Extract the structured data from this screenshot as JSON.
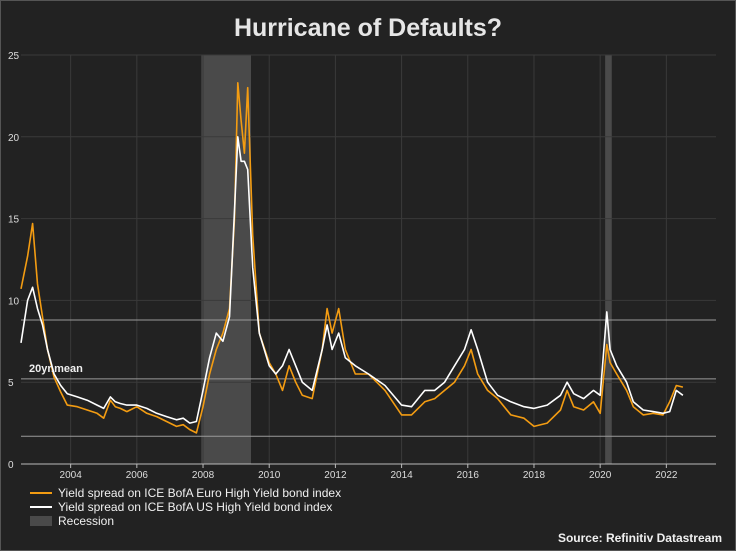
{
  "title": "Hurricane of Defaults?",
  "source": "Source: Refinitiv Datastream",
  "colors": {
    "background": "#222222",
    "euro": "#f39c12",
    "us": "#ffffff",
    "recession": "#4a4a4a",
    "grid": "#3a3a3a"
  },
  "legend": {
    "euro": "Yield spread on ICE BofA Euro High Yield bond index",
    "us": "Yield spread on ICE BofA US High Yield bond index",
    "recession": "Recession"
  },
  "chart_data": {
    "type": "line",
    "ylim": [
      0,
      25
    ],
    "xlim": [
      2002.5,
      2023.5
    ],
    "yticks": [
      0,
      5,
      10,
      15,
      20,
      25
    ],
    "xticks": [
      2004,
      2006,
      2008,
      2010,
      2012,
      2014,
      2016,
      2018,
      2020,
      2022
    ],
    "grid": true,
    "legend_position": "bottom-left",
    "annotations": [
      {
        "text": "20yr.mean",
        "y": 5.2
      }
    ],
    "reference_lines": [
      8.8,
      5.2,
      1.7
    ],
    "recessions": [
      [
        2007.95,
        2009.45
      ],
      [
        2020.15,
        2020.35
      ]
    ],
    "series": [
      {
        "name": "Yield spread on ICE BofA Euro High Yield bond index",
        "color": "#f39c12",
        "x": [
          2002.5,
          2002.7,
          2002.85,
          2003.0,
          2003.15,
          2003.3,
          2003.5,
          2003.7,
          2003.9,
          2004.2,
          2004.5,
          2004.8,
          2005.0,
          2005.2,
          2005.35,
          2005.5,
          2005.7,
          2006.0,
          2006.3,
          2006.6,
          2006.9,
          2007.2,
          2007.4,
          2007.6,
          2007.8,
          2008.0,
          2008.2,
          2008.4,
          2008.6,
          2008.8,
          2008.95,
          2009.05,
          2009.15,
          2009.25,
          2009.35,
          2009.5,
          2009.7,
          2010.0,
          2010.2,
          2010.4,
          2010.6,
          2010.8,
          2011.0,
          2011.3,
          2011.6,
          2011.75,
          2011.9,
          2012.1,
          2012.3,
          2012.6,
          2013.0,
          2013.5,
          2014.0,
          2014.3,
          2014.7,
          2015.0,
          2015.3,
          2015.6,
          2015.9,
          2016.1,
          2016.3,
          2016.6,
          2016.9,
          2017.3,
          2017.7,
          2018.0,
          2018.4,
          2018.8,
          2019.0,
          2019.2,
          2019.5,
          2019.8,
          2020.0,
          2020.2,
          2020.3,
          2020.5,
          2020.8,
          2021.0,
          2021.3,
          2021.6,
          2021.9,
          2022.1,
          2022.3,
          2022.5
        ],
        "y": [
          10.7,
          12.7,
          14.7,
          11.0,
          9.0,
          7.0,
          5.3,
          4.4,
          3.6,
          3.5,
          3.3,
          3.1,
          2.8,
          3.9,
          3.5,
          3.4,
          3.2,
          3.5,
          3.1,
          2.9,
          2.6,
          2.3,
          2.4,
          2.1,
          1.9,
          3.5,
          5.5,
          7.0,
          8.0,
          9.5,
          15.0,
          23.3,
          21.0,
          19.0,
          23.0,
          14.0,
          8.0,
          6.2,
          5.5,
          4.5,
          6.0,
          5.0,
          4.2,
          4.0,
          7.0,
          9.5,
          8.0,
          9.5,
          7.0,
          5.5,
          5.5,
          4.5,
          3.0,
          3.0,
          3.8,
          4.0,
          4.5,
          5.0,
          6.0,
          7.0,
          5.5,
          4.5,
          4.0,
          3.0,
          2.8,
          2.3,
          2.5,
          3.3,
          4.5,
          3.5,
          3.3,
          3.8,
          3.1,
          7.3,
          6.2,
          5.5,
          4.5,
          3.5,
          3.0,
          3.1,
          3.0,
          3.8,
          4.8,
          4.7
        ]
      },
      {
        "name": "Yield spread on ICE BofA US High Yield bond index",
        "color": "#ffffff",
        "x": [
          2002.5,
          2002.7,
          2002.85,
          2003.0,
          2003.15,
          2003.3,
          2003.5,
          2003.7,
          2003.9,
          2004.2,
          2004.5,
          2004.8,
          2005.0,
          2005.2,
          2005.35,
          2005.5,
          2005.7,
          2006.0,
          2006.3,
          2006.6,
          2006.9,
          2007.2,
          2007.4,
          2007.6,
          2007.8,
          2008.0,
          2008.2,
          2008.4,
          2008.6,
          2008.8,
          2008.95,
          2009.05,
          2009.15,
          2009.25,
          2009.35,
          2009.5,
          2009.7,
          2010.0,
          2010.2,
          2010.4,
          2010.6,
          2010.8,
          2011.0,
          2011.3,
          2011.6,
          2011.75,
          2011.9,
          2012.1,
          2012.3,
          2012.6,
          2013.0,
          2013.5,
          2014.0,
          2014.3,
          2014.7,
          2015.0,
          2015.3,
          2015.6,
          2015.9,
          2016.1,
          2016.3,
          2016.6,
          2016.9,
          2017.3,
          2017.7,
          2018.0,
          2018.4,
          2018.8,
          2019.0,
          2019.2,
          2019.5,
          2019.8,
          2020.0,
          2020.2,
          2020.3,
          2020.5,
          2020.8,
          2021.0,
          2021.3,
          2021.6,
          2021.9,
          2022.1,
          2022.3,
          2022.5
        ],
        "y": [
          7.4,
          10.0,
          10.8,
          9.5,
          8.5,
          7.0,
          5.5,
          4.8,
          4.3,
          4.1,
          3.9,
          3.6,
          3.4,
          4.1,
          3.8,
          3.7,
          3.6,
          3.6,
          3.4,
          3.1,
          2.9,
          2.7,
          2.8,
          2.5,
          2.6,
          4.5,
          6.5,
          8.0,
          7.5,
          9.0,
          15.5,
          20.0,
          18.5,
          18.5,
          18.0,
          12.0,
          8.0,
          6.0,
          5.5,
          6.0,
          7.0,
          6.0,
          5.0,
          4.5,
          7.0,
          8.5,
          7.0,
          8.0,
          6.5,
          6.0,
          5.5,
          4.8,
          3.6,
          3.5,
          4.5,
          4.5,
          5.0,
          6.0,
          7.0,
          8.2,
          7.0,
          5.0,
          4.2,
          3.8,
          3.5,
          3.4,
          3.6,
          4.2,
          5.0,
          4.3,
          4.0,
          4.5,
          4.2,
          9.3,
          7.0,
          6.0,
          5.0,
          3.8,
          3.3,
          3.2,
          3.1,
          3.2,
          4.5,
          4.2
        ]
      }
    ]
  }
}
